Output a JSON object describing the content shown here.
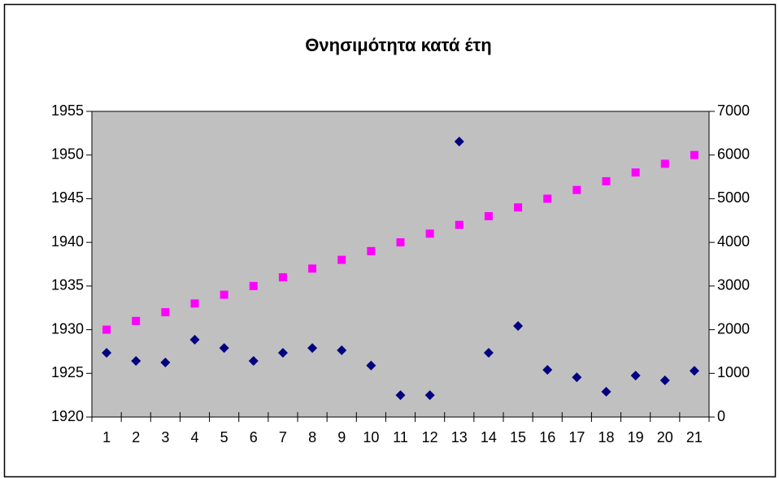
{
  "chart_data": {
    "type": "line",
    "title": "Θνησιμότητα κατά έτη",
    "categories": [
      "1",
      "2",
      "3",
      "4",
      "5",
      "6",
      "7",
      "8",
      "9",
      "10",
      "11",
      "12",
      "13",
      "14",
      "15",
      "16",
      "17",
      "18",
      "19",
      "20",
      "21"
    ],
    "series": [
      {
        "color": "#ff00ff",
        "marker": "square",
        "values": [
          1930,
          1931,
          1932,
          1933,
          1934,
          1935,
          1936,
          1937,
          1938,
          1939,
          1940,
          1941,
          1942,
          1943,
          1944,
          1945,
          1946,
          1947,
          1948,
          1949,
          1950
        ]
      },
      {
        "color": "#000080",
        "marker": "diamond",
        "axis": "y2",
        "values": [
          1470,
          1285,
          1250,
          1770,
          1580,
          1285,
          1470,
          1580,
          1530,
          1180,
          500,
          500,
          6310,
          1470,
          2085,
          1080,
          910,
          580,
          950,
          840,
          1060
        ]
      }
    ],
    "ylim": [
      1920,
      1955
    ],
    "yticks": [
      1920,
      1925,
      1930,
      1935,
      1940,
      1945,
      1950,
      1955
    ],
    "y2lim": [
      0,
      7000
    ],
    "y2ticks": [
      0,
      1000,
      2000,
      3000,
      4000,
      5000,
      6000,
      7000
    ],
    "plot_background": "#c0c0c0"
  }
}
